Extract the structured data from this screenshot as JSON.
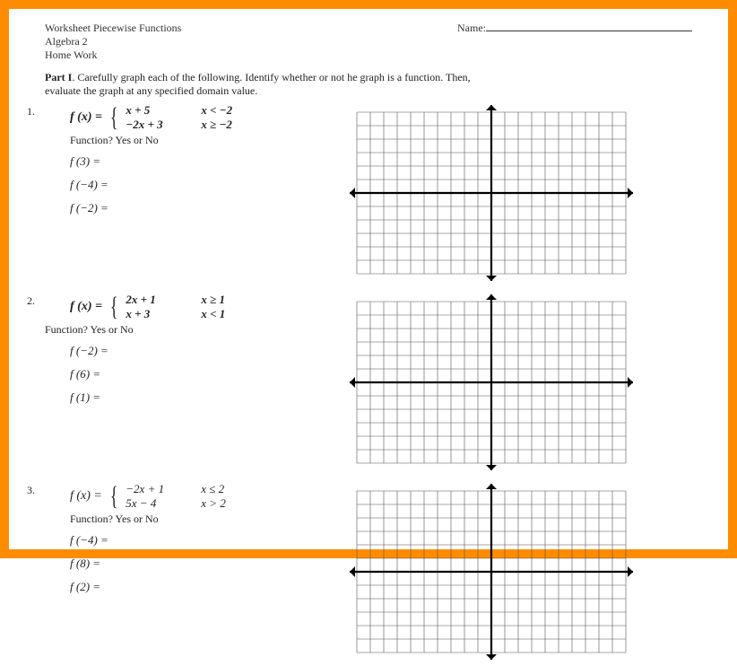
{
  "header": {
    "title": "Worksheet Piecewise Functions",
    "name_label": "Name:",
    "course": "Algebra 2",
    "hw": "Home Work"
  },
  "part": {
    "label": "Part I",
    "instructions_a": ".  Carefully graph each of the following.  Identify whether or not he graph is a function.  Then,",
    "instructions_b": "evaluate the graph at any specified domain value."
  },
  "problems": [
    {
      "n": "1.",
      "fx": "f (x) =",
      "pieces": [
        {
          "expr": "x + 5",
          "cond": "x < −2"
        },
        {
          "expr": "−2x + 3",
          "cond": "x ≥ −2"
        }
      ],
      "question": "Function?   Yes   or   No",
      "evals": [
        "f (3) =",
        "f (−4) =",
        "f (−2) ="
      ]
    },
    {
      "n": "2.",
      "fx": "f (x) =",
      "pieces": [
        {
          "expr": "2x + 1",
          "cond": "x ≥ 1"
        },
        {
          "expr": "x  + 3",
          "cond": "x < 1"
        }
      ],
      "question": "Function?   Yes   or   No",
      "evals": [
        "f (−2) =",
        "f (6) =",
        "f (1) ="
      ]
    },
    {
      "n": "3.",
      "fx": "f (x) =",
      "pieces": [
        {
          "expr": "−2x + 1",
          "cond": "x ≤ 2"
        },
        {
          "expr": "5x − 4",
          "cond": "x > 2"
        }
      ],
      "question": "Function?   Yes   or   No",
      "evals": [
        "f (−4) =",
        "f (8) =",
        "f (2) ="
      ]
    }
  ],
  "graph": {
    "cols": 20,
    "rows": 12,
    "cell": 15,
    "grid_color": "#555555",
    "axis_color": "#000000",
    "arrow_size": 6,
    "background": "#ffffff"
  },
  "colors": {
    "frame": "#ff8c00",
    "text": "#222222"
  }
}
